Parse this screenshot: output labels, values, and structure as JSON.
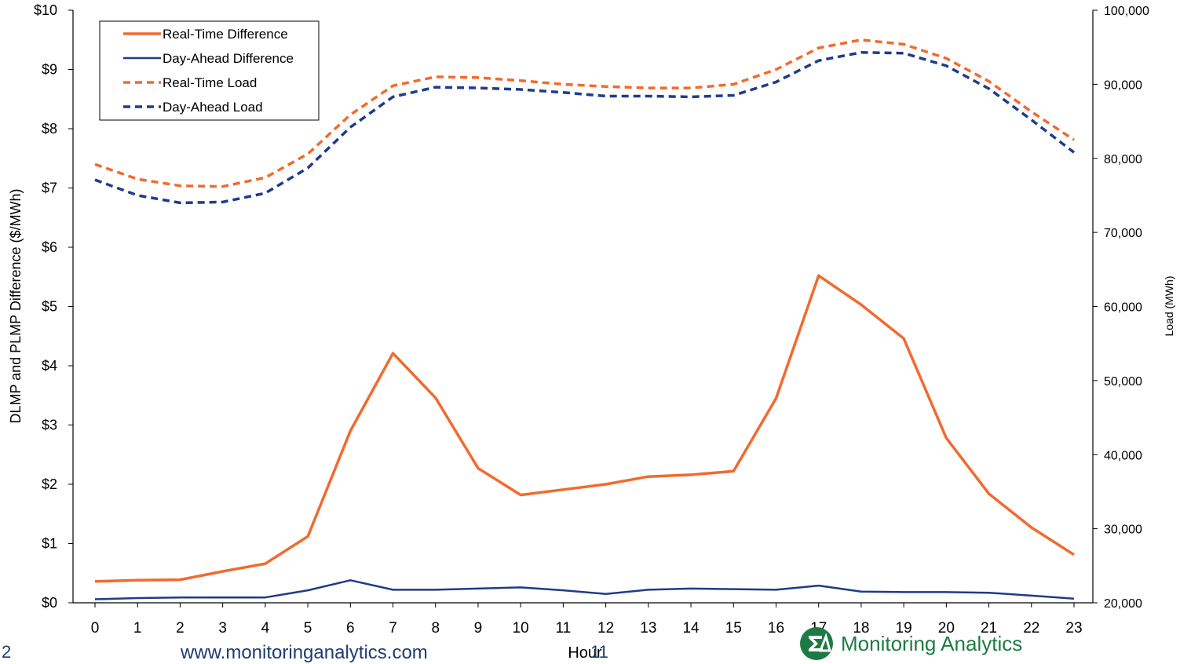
{
  "footer": {
    "page_number": "2",
    "website": "www.monitoringanalytics.com",
    "slide_number": "11",
    "logo_text": "Monitoring Analytics"
  },
  "colors": {
    "real_time": "#f26a2e",
    "day_ahead": "#1f3b8a",
    "axis": "#000000",
    "logo_green": "#1e7a44",
    "footer_blue": "#1f3b73"
  },
  "chart_data": {
    "type": "line",
    "xlabel": "Hour",
    "ylabel": "DLMP and PLMP Difference ($/MWh)",
    "y2label": "Load (MWh)",
    "x": [
      0,
      1,
      2,
      3,
      4,
      5,
      6,
      7,
      8,
      9,
      10,
      11,
      12,
      13,
      14,
      15,
      16,
      17,
      18,
      19,
      20,
      21,
      22,
      23
    ],
    "ylim": [
      0,
      10
    ],
    "y2lim": [
      20000,
      100000
    ],
    "y_ticks": [
      "$0",
      "$1",
      "$2",
      "$3",
      "$4",
      "$5",
      "$6",
      "$7",
      "$8",
      "$9",
      "$10"
    ],
    "y2_ticks": [
      "20,000",
      "30,000",
      "40,000",
      "50,000",
      "60,000",
      "70,000",
      "80,000",
      "90,000",
      "100,000"
    ],
    "legend_position": "top-left",
    "grid": false,
    "series": [
      {
        "name": "Real-Time Difference",
        "axis": "left",
        "style": "solid",
        "color": "#f26a2e",
        "values": [
          0.36,
          0.38,
          0.39,
          0.53,
          0.66,
          1.12,
          2.9,
          4.21,
          3.46,
          2.27,
          1.82,
          1.91,
          2.0,
          2.13,
          2.16,
          2.22,
          3.45,
          5.52,
          5.03,
          4.46,
          2.78,
          1.84,
          1.27,
          0.81
        ]
      },
      {
        "name": "Day-Ahead Difference",
        "axis": "left",
        "style": "solid",
        "color": "#1f3b8a",
        "values": [
          0.06,
          0.08,
          0.09,
          0.09,
          0.09,
          0.21,
          0.38,
          0.22,
          0.22,
          0.24,
          0.26,
          0.21,
          0.15,
          0.22,
          0.24,
          0.23,
          0.22,
          0.29,
          0.19,
          0.18,
          0.18,
          0.17,
          0.12,
          0.07
        ]
      },
      {
        "name": "Real-Time Load",
        "axis": "right",
        "style": "dashed",
        "color": "#f26a2e",
        "values": [
          79200,
          77200,
          76300,
          76200,
          77400,
          80600,
          85900,
          89800,
          91000,
          90900,
          90500,
          90000,
          89700,
          89500,
          89500,
          90000,
          92000,
          94900,
          96000,
          95400,
          93500,
          90400,
          86300,
          82500
        ]
      },
      {
        "name": "Day-Ahead Load",
        "axis": "right",
        "style": "dashed",
        "color": "#1f3b8a",
        "values": [
          77100,
          75000,
          74000,
          74100,
          75300,
          78700,
          84200,
          88300,
          89600,
          89500,
          89300,
          88900,
          88400,
          88400,
          88300,
          88500,
          90300,
          93200,
          94300,
          94200,
          92500,
          89400,
          85200,
          80800
        ]
      }
    ]
  }
}
